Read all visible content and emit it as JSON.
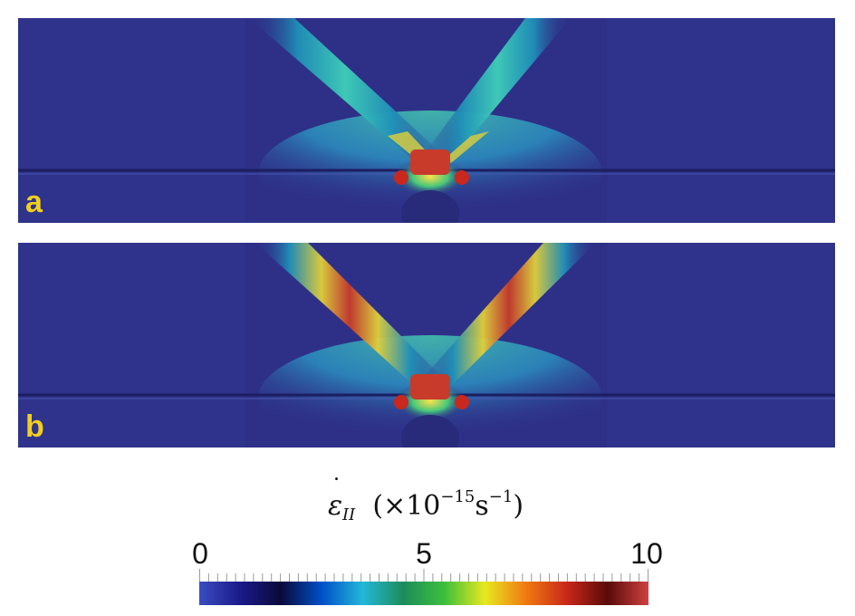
{
  "panels": [
    {
      "letter": "a"
    },
    {
      "letter": "b"
    }
  ],
  "colorbar": {
    "title_symbol": "ε",
    "title_subscript": "II",
    "title_open": "(×10",
    "title_exponent": "−15",
    "title_unit": "s",
    "title_unit_exponent": "−1",
    "title_close": ")",
    "ticks": [
      "0",
      "5",
      "10"
    ],
    "range": [
      0,
      10
    ],
    "colormap": [
      "#3b4cc0",
      "#1a1a8a",
      "#0a0a3a",
      "#0050c8",
      "#22b8d8",
      "#1e8c5a",
      "#3cbf3c",
      "#e8e820",
      "#f07a10",
      "#c82818",
      "#5a0a0a",
      "#d04040"
    ]
  }
}
